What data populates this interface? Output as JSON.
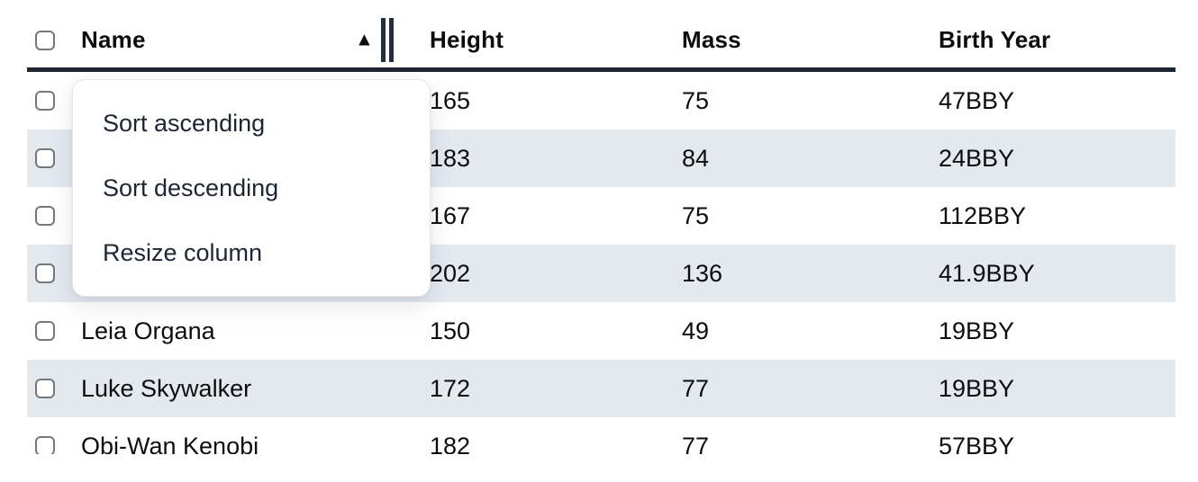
{
  "table": {
    "columns": [
      {
        "id": "name",
        "label": "Name"
      },
      {
        "id": "height",
        "label": "Height"
      },
      {
        "id": "mass",
        "label": "Mass"
      },
      {
        "id": "birth_year",
        "label": "Birth Year"
      }
    ],
    "sort": {
      "column": "Name",
      "direction": "ascending",
      "indicator_glyph": "▲"
    },
    "rows": [
      {
        "name": "",
        "height": "165",
        "mass": "75",
        "birth_year": "47BBY"
      },
      {
        "name": "",
        "height": "183",
        "mass": "84",
        "birth_year": "24BBY"
      },
      {
        "name": "",
        "height": "167",
        "mass": "75",
        "birth_year": "112BBY"
      },
      {
        "name": "",
        "height": "202",
        "mass": "136",
        "birth_year": "41.9BBY"
      },
      {
        "name": "Leia Organa",
        "height": "150",
        "mass": "49",
        "birth_year": "19BBY"
      },
      {
        "name": "Luke Skywalker",
        "height": "172",
        "mass": "77",
        "birth_year": "19BBY"
      },
      {
        "name": "Obi-Wan Kenobi",
        "height": "182",
        "mass": "77",
        "birth_year": "57BBY"
      }
    ]
  },
  "context_menu": {
    "items": [
      {
        "label": "Sort ascending"
      },
      {
        "label": "Sort descending"
      },
      {
        "label": "Resize column"
      }
    ]
  },
  "colors": {
    "row_stripe": "#e4e9f0",
    "header_border": "#1e2533",
    "menu_text": "#1e2533",
    "cell_text": "#0d0d0e",
    "checkbox_border": "#74787f"
  }
}
